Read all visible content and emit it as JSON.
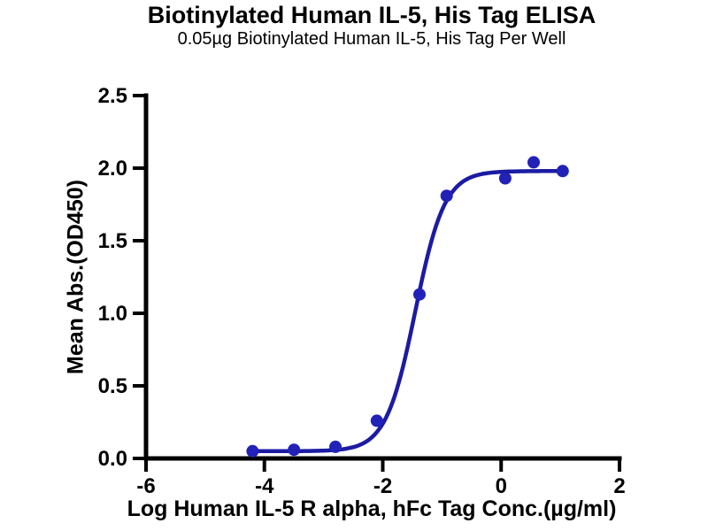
{
  "page": {
    "background_color": "#ffffff",
    "text_color": "#000000"
  },
  "chart_data": {
    "type": "scatter",
    "title": "Biotinylated Human IL-5, His Tag ELISA",
    "subtitle": "0.05µg Biotinylated Human IL-5, His Tag Per Well",
    "xlabel": "Log Human IL-5 R alpha, hFc Tag Conc.(µg/ml)",
    "ylabel": "Mean Abs.(OD450)",
    "xlim": [
      -6,
      2
    ],
    "ylim": [
      0,
      2.5
    ],
    "grid": false,
    "legend": "none",
    "axis_color": "#000000",
    "xticks": {
      "values": [
        -6,
        -4,
        -2,
        0,
        2
      ],
      "labels": [
        "-6",
        "-4",
        "-2",
        "0",
        "2"
      ]
    },
    "yticks": {
      "values": [
        0,
        0.5,
        1.0,
        1.5,
        2.0,
        2.5
      ],
      "labels": [
        "0.0",
        "0.5",
        "1.0",
        "1.5",
        "2.0",
        "2.5"
      ]
    },
    "series": [
      {
        "name": "Mean Abs.(OD450)",
        "marker": "circle",
        "color": "#2222B8",
        "points": [
          {
            "x": -4.2,
            "y": 0.05
          },
          {
            "x": -3.5,
            "y": 0.06
          },
          {
            "x": -2.8,
            "y": 0.08
          },
          {
            "x": -2.1,
            "y": 0.26
          },
          {
            "x": -1.38,
            "y": 1.13
          },
          {
            "x": -0.92,
            "y": 1.81
          },
          {
            "x": 0.07,
            "y": 1.93
          },
          {
            "x": 0.55,
            "y": 2.04
          },
          {
            "x": 1.04,
            "y": 1.98
          }
        ]
      }
    ],
    "fit_curve": {
      "model": "4PL",
      "bottom": 0.05,
      "top": 1.98,
      "logEC50": -1.45,
      "hillslope": 1.75,
      "x_range": [
        -4.2,
        1.04
      ],
      "color": "#1B1BA3"
    }
  }
}
